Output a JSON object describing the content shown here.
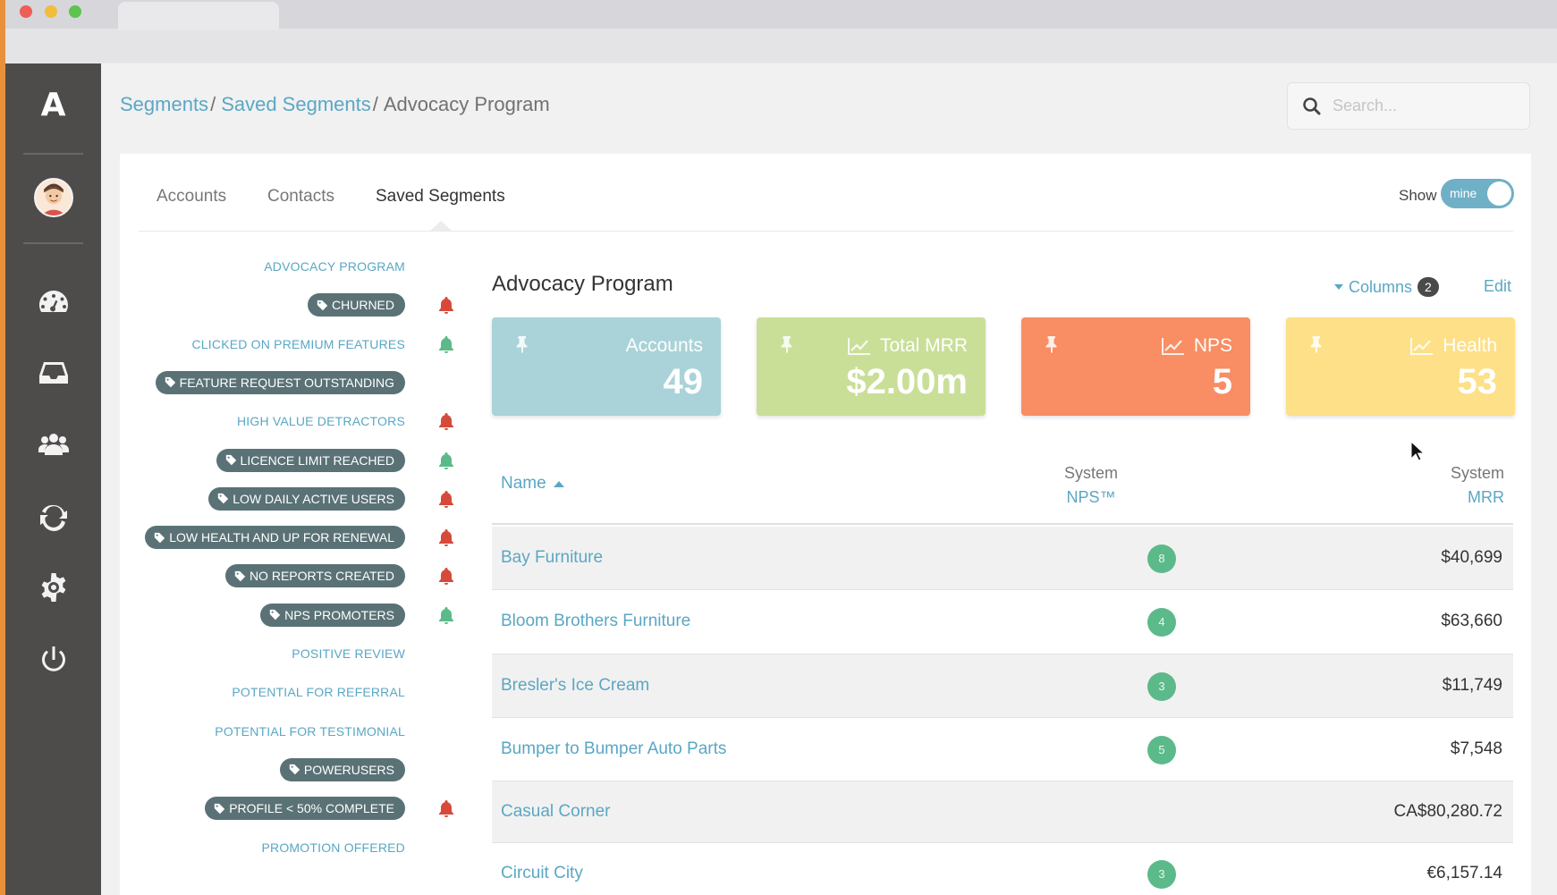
{
  "breadcrumb": [
    {
      "label": "Segments",
      "link": true
    },
    {
      "label": "Saved Segments",
      "link": true
    },
    {
      "label": "Advocacy Program",
      "link": false
    }
  ],
  "search": {
    "placeholder": "Search..."
  },
  "tabs": [
    {
      "label": "Accounts",
      "active": false
    },
    {
      "label": "Contacts",
      "active": false
    },
    {
      "label": "Saved Segments",
      "active": true
    }
  ],
  "show_toggle": {
    "label": "Show",
    "value": "mine",
    "on": true
  },
  "segments": [
    {
      "label": "ADVOCACY PROGRAM",
      "type": "text",
      "bell": null
    },
    {
      "label": "CHURNED",
      "type": "tag",
      "bell": "red"
    },
    {
      "label": "CLICKED ON PREMIUM FEATURES",
      "type": "text",
      "bell": "green"
    },
    {
      "label": "FEATURE REQUEST OUTSTANDING",
      "type": "tag",
      "bell": null
    },
    {
      "label": "HIGH VALUE DETRACTORS",
      "type": "text",
      "bell": "red"
    },
    {
      "label": "LICENCE LIMIT REACHED",
      "type": "tag",
      "bell": "green"
    },
    {
      "label": "LOW DAILY ACTIVE USERS",
      "type": "tag",
      "bell": "red"
    },
    {
      "label": "LOW HEALTH AND UP FOR RENEWAL",
      "type": "tag",
      "bell": "red"
    },
    {
      "label": "NO REPORTS CREATED",
      "type": "tag",
      "bell": "red"
    },
    {
      "label": "NPS PROMOTERS",
      "type": "tag",
      "bell": "green"
    },
    {
      "label": "POSITIVE REVIEW",
      "type": "text",
      "bell": null
    },
    {
      "label": "POTENTIAL FOR REFERRAL",
      "type": "text",
      "bell": null
    },
    {
      "label": "POTENTIAL FOR TESTIMONIAL",
      "type": "text",
      "bell": null
    },
    {
      "label": "POWERUSERS",
      "type": "tag",
      "bell": null
    },
    {
      "label": "PROFILE < 50% COMPLETE",
      "type": "tag",
      "bell": "red"
    },
    {
      "label": "PROMOTION OFFERED",
      "type": "text",
      "bell": null
    }
  ],
  "detail": {
    "title": "Advocacy Program",
    "columns_label": "Columns",
    "columns_count": "2",
    "edit_label": "Edit"
  },
  "kpis": [
    {
      "label": "Accounts",
      "value": "49",
      "color": "#a9d3d8",
      "icon": "pin-icon",
      "chart_icon": false
    },
    {
      "label": "Total MRR",
      "value": "$2.00m",
      "color": "#c9df98",
      "icon": "pin-icon",
      "chart_icon": true
    },
    {
      "label": "NPS",
      "value": "5",
      "color": "#f98d63",
      "icon": "pin-icon",
      "chart_icon": true
    },
    {
      "label": "Health",
      "value": "53",
      "color": "#fde087",
      "icon": "pin-icon",
      "chart_icon": true
    }
  ],
  "table": {
    "headers": {
      "name": "Name",
      "nps_l1": "System",
      "nps_l2": "NPS™",
      "mrr_l1": "System",
      "mrr_l2": "MRR"
    },
    "rows": [
      {
        "name": "Bay Furniture",
        "nps": "8",
        "mrr": "$40,699"
      },
      {
        "name": "Bloom Brothers Furniture",
        "nps": "4",
        "mrr": "$63,660"
      },
      {
        "name": "Bresler's Ice Cream",
        "nps": "3",
        "mrr": "$11,749"
      },
      {
        "name": "Bumper to Bumper Auto Parts",
        "nps": "5",
        "mrr": "$7,548"
      },
      {
        "name": "Casual Corner",
        "nps": "",
        "mrr": "CA$80,280.72"
      },
      {
        "name": "Circuit City",
        "nps": "3",
        "mrr": "€6,157.14"
      }
    ]
  },
  "colors": {
    "sidebar": "#4e4c4b",
    "accent": "#5aa7c4",
    "tag_bg": "#5a7276",
    "bell_red": "#d64a3b",
    "bell_green": "#5cba8a",
    "nps_badge": "#5cba8a"
  }
}
